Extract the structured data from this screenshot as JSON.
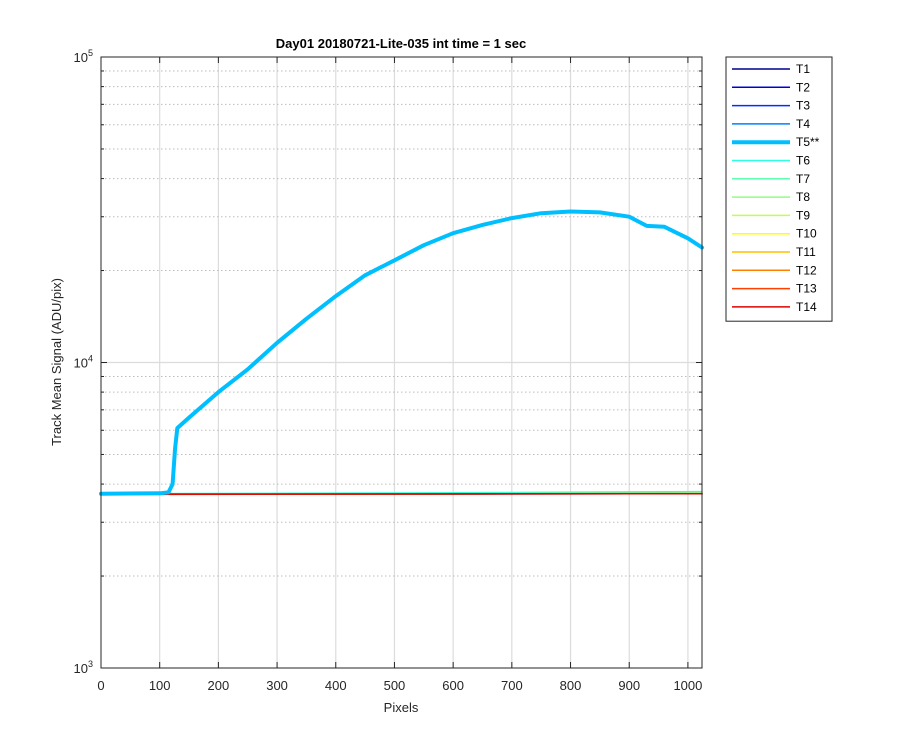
{
  "chart_data": {
    "type": "line",
    "title": "Day01 20180721-Lite-035 int time = 1 sec",
    "xlabel": "Pixels",
    "ylabel": "Track Mean Signal (ADU/pix)",
    "x_scale": "linear",
    "y_scale": "log",
    "xlim": [
      0,
      1024
    ],
    "ylim": [
      1000,
      100000
    ],
    "x_ticks": [
      0,
      100,
      200,
      300,
      400,
      500,
      600,
      700,
      800,
      900,
      1000
    ],
    "y_tick_labels": [
      {
        "value": 1000,
        "base": "10",
        "exp": "3"
      },
      {
        "value": 10000,
        "base": "10",
        "exp": "4"
      },
      {
        "value": 100000,
        "base": "10",
        "exp": "5"
      }
    ],
    "grid": true,
    "minor_grid": true,
    "legend_position": "outside-right",
    "series": [
      {
        "name": "T1",
        "color": "#00008F",
        "highlight": false,
        "values": [
          [
            0,
            3700
          ],
          [
            1024,
            3720
          ]
        ]
      },
      {
        "name": "T2",
        "color": "#0000DF",
        "highlight": false,
        "values": [
          [
            0,
            3705
          ],
          [
            1024,
            3722
          ]
        ]
      },
      {
        "name": "T3",
        "color": "#0030FF",
        "highlight": false,
        "values": [
          [
            0,
            3708
          ],
          [
            1024,
            3724
          ]
        ]
      },
      {
        "name": "T4",
        "color": "#0080FF",
        "highlight": false,
        "values": [
          [
            0,
            3710
          ],
          [
            1024,
            3726
          ]
        ]
      },
      {
        "name": "T5**",
        "color": "#00BFFF",
        "highlight": true,
        "values": [
          [
            0,
            3720
          ],
          [
            100,
            3730
          ],
          [
            115,
            3760
          ],
          [
            122,
            4000
          ],
          [
            126,
            5200
          ],
          [
            130,
            6100
          ],
          [
            150,
            6600
          ],
          [
            200,
            8000
          ],
          [
            250,
            9500
          ],
          [
            300,
            11600
          ],
          [
            350,
            13900
          ],
          [
            400,
            16500
          ],
          [
            450,
            19300
          ],
          [
            500,
            21600
          ],
          [
            550,
            24200
          ],
          [
            600,
            26500
          ],
          [
            650,
            28200
          ],
          [
            700,
            29700
          ],
          [
            750,
            30800
          ],
          [
            800,
            31200
          ],
          [
            850,
            31000
          ],
          [
            900,
            30000
          ],
          [
            930,
            28000
          ],
          [
            960,
            27800
          ],
          [
            1000,
            25500
          ],
          [
            1024,
            23800
          ]
        ]
      },
      {
        "name": "T6",
        "color": "#30FFDF",
        "highlight": false,
        "values": [
          [
            0,
            3720
          ],
          [
            500,
            3740
          ],
          [
            1024,
            3780
          ]
        ]
      },
      {
        "name": "T7",
        "color": "#60FFB0",
        "highlight": false,
        "values": [
          [
            0,
            3712
          ],
          [
            1024,
            3728
          ]
        ]
      },
      {
        "name": "T8",
        "color": "#90FF80",
        "highlight": false,
        "values": [
          [
            0,
            3711
          ],
          [
            1024,
            3727
          ]
        ]
      },
      {
        "name": "T9",
        "color": "#C0FF50",
        "highlight": false,
        "values": [
          [
            0,
            3710
          ],
          [
            1024,
            3725
          ]
        ]
      },
      {
        "name": "T10",
        "color": "#FFFF00",
        "highlight": false,
        "values": [
          [
            0,
            3709
          ],
          [
            1024,
            3724
          ]
        ]
      },
      {
        "name": "T11",
        "color": "#FFBF00",
        "highlight": false,
        "values": [
          [
            0,
            3708
          ],
          [
            1024,
            3723
          ]
        ]
      },
      {
        "name": "T12",
        "color": "#FF8000",
        "highlight": false,
        "values": [
          [
            0,
            3707
          ],
          [
            1024,
            3722
          ]
        ]
      },
      {
        "name": "T13",
        "color": "#FF4000",
        "highlight": false,
        "values": [
          [
            0,
            3706
          ],
          [
            1024,
            3721
          ]
        ]
      },
      {
        "name": "T14",
        "color": "#DF0000",
        "highlight": false,
        "values": [
          [
            0,
            3705
          ],
          [
            1024,
            3720
          ]
        ]
      }
    ]
  }
}
